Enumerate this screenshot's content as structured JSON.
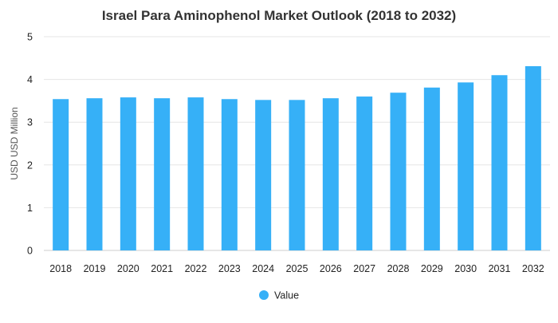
{
  "chart_data": {
    "type": "bar",
    "title": "Israel Para Aminophenol Market Outlook (2018 to 2032)",
    "xlabel": "",
    "ylabel": "USD USD Million",
    "categories": [
      "2018",
      "2019",
      "2020",
      "2021",
      "2022",
      "2023",
      "2024",
      "2025",
      "2026",
      "2027",
      "2028",
      "2029",
      "2030",
      "2031",
      "2032"
    ],
    "series": [
      {
        "name": "Value",
        "values": [
          3.54,
          3.56,
          3.58,
          3.56,
          3.58,
          3.54,
          3.52,
          3.52,
          3.56,
          3.6,
          3.69,
          3.81,
          3.93,
          4.1,
          4.31
        ],
        "color": "#36b0f7"
      }
    ],
    "ylim": [
      0,
      5
    ],
    "yticks": [
      "0",
      "1",
      "2",
      "3",
      "4",
      "5"
    ],
    "grid": true,
    "legend_position": "bottom-center"
  }
}
